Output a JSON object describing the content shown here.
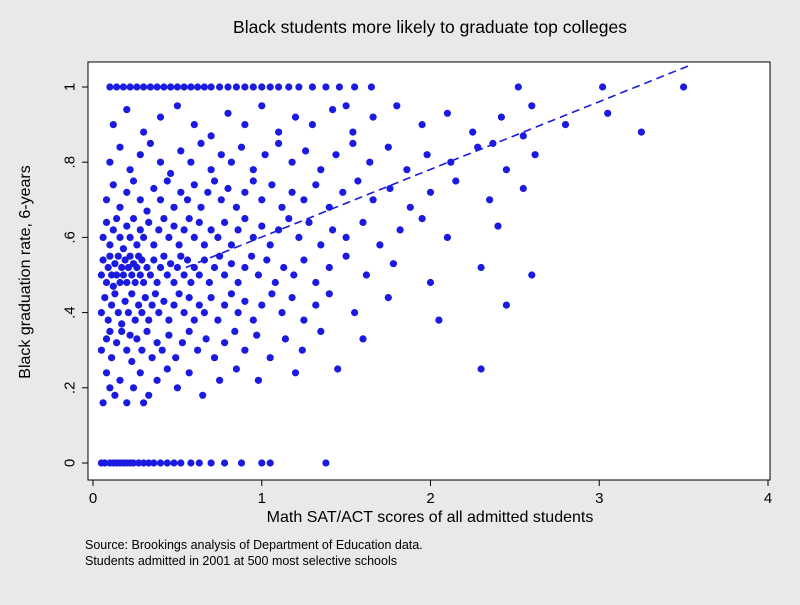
{
  "colors": {
    "background": "#e9e9e9",
    "plot_background": "#ffffff",
    "point_color": "#1a1ae0",
    "axis_color": "#000000",
    "text_color": "#000000"
  },
  "source_note": {
    "line1": "Source: Brookings analysis of Department of Education data.",
    "line2": "Students admitted in 2001 at 500 most selective schools"
  },
  "chart_data": {
    "type": "scatter",
    "title": "Black students more likely to graduate top colleges",
    "xlabel": "Math SAT/ACT scores of all admitted students",
    "ylabel": "Black graduation rate, 6-years",
    "xlim": [
      0,
      4
    ],
    "ylim": [
      0,
      1
    ],
    "x_ticks": [
      0,
      1,
      2,
      3,
      4
    ],
    "x_tick_labels": [
      "0",
      "1",
      "2",
      "3",
      "4"
    ],
    "y_ticks": [
      0,
      0.2,
      0.4,
      0.6,
      0.8,
      1
    ],
    "y_tick_labels": [
      "0",
      ".2",
      ".4",
      ".6",
      ".8",
      "1"
    ],
    "grid": false,
    "legend": "none",
    "trend_line": {
      "style": "dashed",
      "x1": 0.55,
      "y1": 0.52,
      "x2": 3.55,
      "y2": 1.06
    },
    "points": [
      [
        0.05,
        0
      ],
      [
        0.07,
        0
      ],
      [
        0.1,
        0
      ],
      [
        0.12,
        0
      ],
      [
        0.14,
        0
      ],
      [
        0.16,
        0
      ],
      [
        0.18,
        0
      ],
      [
        0.2,
        0
      ],
      [
        0.22,
        0
      ],
      [
        0.24,
        0
      ],
      [
        0.27,
        0
      ],
      [
        0.3,
        0
      ],
      [
        0.33,
        0
      ],
      [
        0.36,
        0
      ],
      [
        0.4,
        0
      ],
      [
        0.44,
        0
      ],
      [
        0.48,
        0
      ],
      [
        0.52,
        0
      ],
      [
        0.58,
        0
      ],
      [
        0.63,
        0
      ],
      [
        0.7,
        0
      ],
      [
        0.78,
        0
      ],
      [
        0.88,
        0
      ],
      [
        1.0,
        0
      ],
      [
        1.05,
        0
      ],
      [
        1.38,
        0
      ],
      [
        0.1,
        1
      ],
      [
        0.14,
        1
      ],
      [
        0.18,
        1
      ],
      [
        0.22,
        1
      ],
      [
        0.26,
        1
      ],
      [
        0.3,
        1
      ],
      [
        0.34,
        1
      ],
      [
        0.38,
        1
      ],
      [
        0.42,
        1
      ],
      [
        0.46,
        1
      ],
      [
        0.5,
        1
      ],
      [
        0.54,
        1
      ],
      [
        0.58,
        1
      ],
      [
        0.62,
        1
      ],
      [
        0.66,
        1
      ],
      [
        0.7,
        1
      ],
      [
        0.75,
        1
      ],
      [
        0.8,
        1
      ],
      [
        0.85,
        1
      ],
      [
        0.9,
        1
      ],
      [
        0.95,
        1
      ],
      [
        1.0,
        1
      ],
      [
        1.05,
        1
      ],
      [
        1.1,
        1
      ],
      [
        1.16,
        1
      ],
      [
        1.22,
        1
      ],
      [
        1.3,
        1
      ],
      [
        1.38,
        1
      ],
      [
        1.46,
        1
      ],
      [
        1.55,
        1
      ],
      [
        1.65,
        1
      ],
      [
        2.52,
        1
      ],
      [
        3.02,
        1
      ],
      [
        3.5,
        1
      ],
      [
        0.06,
        0.16
      ],
      [
        0.1,
        0.2
      ],
      [
        0.13,
        0.18
      ],
      [
        0.16,
        0.22
      ],
      [
        0.2,
        0.16
      ],
      [
        0.24,
        0.2
      ],
      [
        0.28,
        0.24
      ],
      [
        0.33,
        0.18
      ],
      [
        0.38,
        0.22
      ],
      [
        0.44,
        0.25
      ],
      [
        0.5,
        0.2
      ],
      [
        0.57,
        0.24
      ],
      [
        0.65,
        0.18
      ],
      [
        0.75,
        0.22
      ],
      [
        0.85,
        0.25
      ],
      [
        0.98,
        0.22
      ],
      [
        1.2,
        0.24
      ],
      [
        1.45,
        0.25
      ],
      [
        0.08,
        0.24
      ],
      [
        0.3,
        0.16
      ],
      [
        0.05,
        0.3
      ],
      [
        0.08,
        0.33
      ],
      [
        0.11,
        0.28
      ],
      [
        0.14,
        0.32
      ],
      [
        0.17,
        0.35
      ],
      [
        0.2,
        0.3
      ],
      [
        0.23,
        0.27
      ],
      [
        0.26,
        0.33
      ],
      [
        0.29,
        0.3
      ],
      [
        0.32,
        0.35
      ],
      [
        0.35,
        0.28
      ],
      [
        0.38,
        0.32
      ],
      [
        0.41,
        0.3
      ],
      [
        0.45,
        0.34
      ],
      [
        0.49,
        0.28
      ],
      [
        0.53,
        0.32
      ],
      [
        0.57,
        0.35
      ],
      [
        0.62,
        0.3
      ],
      [
        0.67,
        0.33
      ],
      [
        0.72,
        0.28
      ],
      [
        0.78,
        0.32
      ],
      [
        0.84,
        0.35
      ],
      [
        0.9,
        0.3
      ],
      [
        0.97,
        0.34
      ],
      [
        1.05,
        0.28
      ],
      [
        1.14,
        0.33
      ],
      [
        1.24,
        0.3
      ],
      [
        1.35,
        0.35
      ],
      [
        1.6,
        0.33
      ],
      [
        2.3,
        0.25
      ],
      [
        0.1,
        0.35
      ],
      [
        0.22,
        0.34
      ],
      [
        0.05,
        0.4
      ],
      [
        0.07,
        0.44
      ],
      [
        0.09,
        0.38
      ],
      [
        0.11,
        0.42
      ],
      [
        0.13,
        0.45
      ],
      [
        0.15,
        0.4
      ],
      [
        0.17,
        0.37
      ],
      [
        0.19,
        0.43
      ],
      [
        0.21,
        0.4
      ],
      [
        0.23,
        0.45
      ],
      [
        0.25,
        0.38
      ],
      [
        0.27,
        0.42
      ],
      [
        0.29,
        0.4
      ],
      [
        0.31,
        0.44
      ],
      [
        0.33,
        0.38
      ],
      [
        0.35,
        0.42
      ],
      [
        0.37,
        0.45
      ],
      [
        0.39,
        0.4
      ],
      [
        0.42,
        0.43
      ],
      [
        0.45,
        0.38
      ],
      [
        0.48,
        0.42
      ],
      [
        0.51,
        0.45
      ],
      [
        0.54,
        0.4
      ],
      [
        0.57,
        0.44
      ],
      [
        0.6,
        0.38
      ],
      [
        0.63,
        0.42
      ],
      [
        0.66,
        0.4
      ],
      [
        0.7,
        0.44
      ],
      [
        0.74,
        0.38
      ],
      [
        0.78,
        0.42
      ],
      [
        0.82,
        0.45
      ],
      [
        0.86,
        0.4
      ],
      [
        0.9,
        0.43
      ],
      [
        0.95,
        0.38
      ],
      [
        1.0,
        0.42
      ],
      [
        1.06,
        0.45
      ],
      [
        1.12,
        0.4
      ],
      [
        1.18,
        0.44
      ],
      [
        1.25,
        0.38
      ],
      [
        1.32,
        0.42
      ],
      [
        1.4,
        0.45
      ],
      [
        1.55,
        0.4
      ],
      [
        1.75,
        0.44
      ],
      [
        2.05,
        0.38
      ],
      [
        2.45,
        0.42
      ],
      [
        0.05,
        0.5
      ],
      [
        0.06,
        0.54
      ],
      [
        0.08,
        0.48
      ],
      [
        0.09,
        0.52
      ],
      [
        0.1,
        0.55
      ],
      [
        0.11,
        0.5
      ],
      [
        0.12,
        0.47
      ],
      [
        0.13,
        0.53
      ],
      [
        0.14,
        0.5
      ],
      [
        0.15,
        0.55
      ],
      [
        0.16,
        0.48
      ],
      [
        0.17,
        0.52
      ],
      [
        0.18,
        0.5
      ],
      [
        0.19,
        0.54
      ],
      [
        0.2,
        0.48
      ],
      [
        0.21,
        0.52
      ],
      [
        0.22,
        0.55
      ],
      [
        0.23,
        0.5
      ],
      [
        0.24,
        0.53
      ],
      [
        0.25,
        0.48
      ],
      [
        0.26,
        0.52
      ],
      [
        0.27,
        0.55
      ],
      [
        0.28,
        0.5
      ],
      [
        0.29,
        0.54
      ],
      [
        0.3,
        0.48
      ],
      [
        0.32,
        0.52
      ],
      [
        0.34,
        0.5
      ],
      [
        0.36,
        0.54
      ],
      [
        0.38,
        0.48
      ],
      [
        0.4,
        0.52
      ],
      [
        0.42,
        0.55
      ],
      [
        0.44,
        0.5
      ],
      [
        0.46,
        0.53
      ],
      [
        0.48,
        0.48
      ],
      [
        0.5,
        0.52
      ],
      [
        0.52,
        0.55
      ],
      [
        0.54,
        0.5
      ],
      [
        0.56,
        0.54
      ],
      [
        0.58,
        0.48
      ],
      [
        0.6,
        0.52
      ],
      [
        0.63,
        0.5
      ],
      [
        0.66,
        0.54
      ],
      [
        0.69,
        0.48
      ],
      [
        0.72,
        0.52
      ],
      [
        0.75,
        0.55
      ],
      [
        0.78,
        0.5
      ],
      [
        0.82,
        0.53
      ],
      [
        0.86,
        0.48
      ],
      [
        0.9,
        0.52
      ],
      [
        0.94,
        0.55
      ],
      [
        0.98,
        0.5
      ],
      [
        1.03,
        0.54
      ],
      [
        1.08,
        0.48
      ],
      [
        1.13,
        0.52
      ],
      [
        1.19,
        0.5
      ],
      [
        1.25,
        0.54
      ],
      [
        1.32,
        0.48
      ],
      [
        1.4,
        0.52
      ],
      [
        1.5,
        0.55
      ],
      [
        1.62,
        0.5
      ],
      [
        1.78,
        0.53
      ],
      [
        2.0,
        0.48
      ],
      [
        2.3,
        0.52
      ],
      [
        2.6,
        0.5
      ],
      [
        0.06,
        0.6
      ],
      [
        0.08,
        0.64
      ],
      [
        0.1,
        0.58
      ],
      [
        0.12,
        0.62
      ],
      [
        0.14,
        0.65
      ],
      [
        0.16,
        0.6
      ],
      [
        0.18,
        0.57
      ],
      [
        0.2,
        0.63
      ],
      [
        0.22,
        0.6
      ],
      [
        0.24,
        0.65
      ],
      [
        0.26,
        0.58
      ],
      [
        0.28,
        0.62
      ],
      [
        0.3,
        0.6
      ],
      [
        0.33,
        0.64
      ],
      [
        0.36,
        0.58
      ],
      [
        0.39,
        0.62
      ],
      [
        0.42,
        0.65
      ],
      [
        0.45,
        0.6
      ],
      [
        0.48,
        0.63
      ],
      [
        0.51,
        0.58
      ],
      [
        0.54,
        0.62
      ],
      [
        0.57,
        0.65
      ],
      [
        0.6,
        0.6
      ],
      [
        0.63,
        0.64
      ],
      [
        0.66,
        0.58
      ],
      [
        0.7,
        0.62
      ],
      [
        0.74,
        0.6
      ],
      [
        0.78,
        0.64
      ],
      [
        0.82,
        0.58
      ],
      [
        0.86,
        0.62
      ],
      [
        0.9,
        0.65
      ],
      [
        0.95,
        0.6
      ],
      [
        1.0,
        0.63
      ],
      [
        1.05,
        0.58
      ],
      [
        1.1,
        0.62
      ],
      [
        1.16,
        0.65
      ],
      [
        1.22,
        0.6
      ],
      [
        1.28,
        0.64
      ],
      [
        1.35,
        0.58
      ],
      [
        1.42,
        0.62
      ],
      [
        1.5,
        0.6
      ],
      [
        1.6,
        0.64
      ],
      [
        1.7,
        0.58
      ],
      [
        1.82,
        0.62
      ],
      [
        1.95,
        0.65
      ],
      [
        2.1,
        0.6
      ],
      [
        2.4,
        0.63
      ],
      [
        0.08,
        0.7
      ],
      [
        0.12,
        0.74
      ],
      [
        0.16,
        0.68
      ],
      [
        0.2,
        0.72
      ],
      [
        0.24,
        0.75
      ],
      [
        0.28,
        0.7
      ],
      [
        0.32,
        0.67
      ],
      [
        0.36,
        0.73
      ],
      [
        0.4,
        0.7
      ],
      [
        0.44,
        0.75
      ],
      [
        0.48,
        0.68
      ],
      [
        0.52,
        0.72
      ],
      [
        0.56,
        0.7
      ],
      [
        0.6,
        0.74
      ],
      [
        0.64,
        0.68
      ],
      [
        0.68,
        0.72
      ],
      [
        0.72,
        0.75
      ],
      [
        0.76,
        0.7
      ],
      [
        0.8,
        0.73
      ],
      [
        0.85,
        0.68
      ],
      [
        0.9,
        0.72
      ],
      [
        0.95,
        0.75
      ],
      [
        1.0,
        0.7
      ],
      [
        1.06,
        0.74
      ],
      [
        1.12,
        0.68
      ],
      [
        1.18,
        0.72
      ],
      [
        1.25,
        0.7
      ],
      [
        1.32,
        0.74
      ],
      [
        1.4,
        0.68
      ],
      [
        1.48,
        0.72
      ],
      [
        1.57,
        0.75
      ],
      [
        1.66,
        0.7
      ],
      [
        1.76,
        0.73
      ],
      [
        1.88,
        0.68
      ],
      [
        2.0,
        0.72
      ],
      [
        2.15,
        0.75
      ],
      [
        2.35,
        0.7
      ],
      [
        2.55,
        0.73
      ],
      [
        0.1,
        0.8
      ],
      [
        0.16,
        0.84
      ],
      [
        0.22,
        0.78
      ],
      [
        0.28,
        0.82
      ],
      [
        0.34,
        0.85
      ],
      [
        0.4,
        0.8
      ],
      [
        0.46,
        0.77
      ],
      [
        0.52,
        0.83
      ],
      [
        0.58,
        0.8
      ],
      [
        0.64,
        0.85
      ],
      [
        0.7,
        0.78
      ],
      [
        0.76,
        0.82
      ],
      [
        0.82,
        0.8
      ],
      [
        0.88,
        0.84
      ],
      [
        0.95,
        0.78
      ],
      [
        1.02,
        0.82
      ],
      [
        1.1,
        0.85
      ],
      [
        1.18,
        0.8
      ],
      [
        1.26,
        0.83
      ],
      [
        1.35,
        0.78
      ],
      [
        1.44,
        0.82
      ],
      [
        1.54,
        0.85
      ],
      [
        1.64,
        0.8
      ],
      [
        1.75,
        0.84
      ],
      [
        1.86,
        0.78
      ],
      [
        1.98,
        0.82
      ],
      [
        2.12,
        0.8
      ],
      [
        2.28,
        0.84
      ],
      [
        2.45,
        0.78
      ],
      [
        2.62,
        0.82
      ],
      [
        2.37,
        0.85
      ],
      [
        0.12,
        0.9
      ],
      [
        0.2,
        0.94
      ],
      [
        0.3,
        0.88
      ],
      [
        0.4,
        0.92
      ],
      [
        0.5,
        0.95
      ],
      [
        0.6,
        0.9
      ],
      [
        0.7,
        0.87
      ],
      [
        0.8,
        0.93
      ],
      [
        0.9,
        0.9
      ],
      [
        1.0,
        0.95
      ],
      [
        1.1,
        0.88
      ],
      [
        1.2,
        0.92
      ],
      [
        1.3,
        0.9
      ],
      [
        1.42,
        0.94
      ],
      [
        1.54,
        0.88
      ],
      [
        1.66,
        0.92
      ],
      [
        1.8,
        0.95
      ],
      [
        1.95,
        0.9
      ],
      [
        2.1,
        0.93
      ],
      [
        2.25,
        0.88
      ],
      [
        2.42,
        0.92
      ],
      [
        2.6,
        0.95
      ],
      [
        2.8,
        0.9
      ],
      [
        3.05,
        0.93
      ],
      [
        3.25,
        0.88
      ],
      [
        1.5,
        0.95
      ],
      [
        2.55,
        0.87
      ]
    ]
  }
}
